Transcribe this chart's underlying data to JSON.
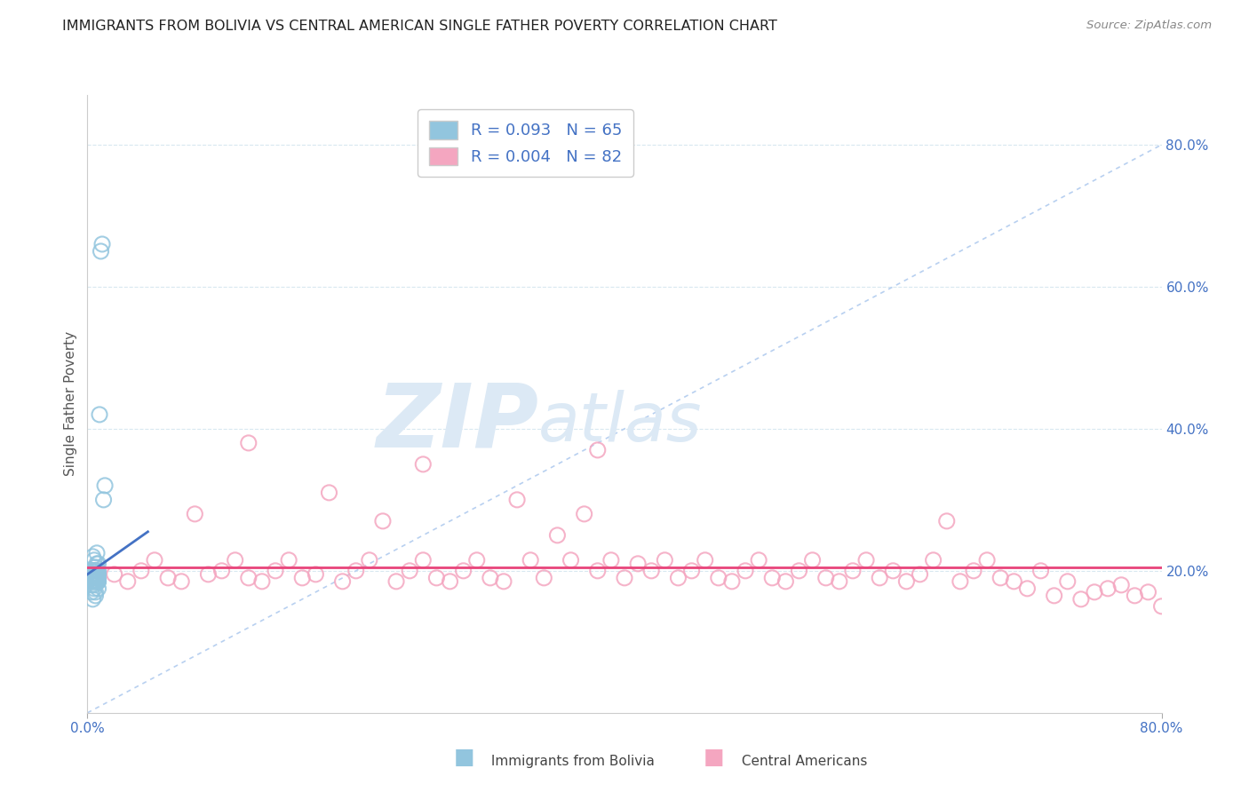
{
  "title": "IMMIGRANTS FROM BOLIVIA VS CENTRAL AMERICAN SINGLE FATHER POVERTY CORRELATION CHART",
  "source": "Source: ZipAtlas.com",
  "ylabel": "Single Father Poverty",
  "xlabel": "",
  "xlim": [
    0,
    0.8
  ],
  "ylim": [
    0.0,
    0.87
  ],
  "right_ytick_labels": [
    "20.0%",
    "40.0%",
    "60.0%",
    "80.0%"
  ],
  "right_ytick_values": [
    0.2,
    0.4,
    0.6,
    0.8
  ],
  "bolivia_R": 0.093,
  "bolivia_N": 65,
  "central_R": 0.004,
  "central_N": 82,
  "bolivia_color": "#92c5de",
  "central_color": "#f4a6c0",
  "bolivia_trend_color": "#4472c4",
  "central_trend_color": "#e8447a",
  "ref_line_color": "#b8d0f0",
  "grid_color": "#d8e8f0",
  "background_color": "#ffffff",
  "watermark_zip": "ZIP",
  "watermark_atlas": "atlas",
  "watermark_color": "#dce9f5",
  "legend_box_color": "#ffffff",
  "legend_border_color": "#cccccc",
  "bolivia_x": [
    0.005,
    0.003,
    0.008,
    0.004,
    0.006,
    0.002,
    0.007,
    0.005,
    0.003,
    0.006,
    0.008,
    0.004,
    0.005,
    0.007,
    0.003,
    0.006,
    0.004,
    0.008,
    0.005,
    0.003,
    0.007,
    0.004,
    0.006,
    0.005,
    0.003,
    0.008,
    0.006,
    0.004,
    0.007,
    0.005,
    0.003,
    0.006,
    0.008,
    0.004,
    0.005,
    0.007,
    0.003,
    0.006,
    0.004,
    0.008,
    0.005,
    0.003,
    0.007,
    0.006,
    0.004,
    0.008,
    0.005,
    0.006,
    0.003,
    0.007,
    0.004,
    0.008,
    0.005,
    0.006,
    0.003,
    0.007,
    0.004,
    0.008,
    0.005,
    0.006,
    0.009,
    0.01,
    0.011,
    0.012,
    0.013
  ],
  "bolivia_y": [
    0.195,
    0.19,
    0.185,
    0.2,
    0.195,
    0.19,
    0.2,
    0.185,
    0.195,
    0.185,
    0.19,
    0.2,
    0.185,
    0.195,
    0.2,
    0.19,
    0.185,
    0.195,
    0.2,
    0.19,
    0.185,
    0.195,
    0.2,
    0.19,
    0.185,
    0.195,
    0.2,
    0.19,
    0.185,
    0.195,
    0.2,
    0.19,
    0.185,
    0.195,
    0.2,
    0.19,
    0.185,
    0.195,
    0.19,
    0.185,
    0.195,
    0.2,
    0.19,
    0.185,
    0.195,
    0.2,
    0.175,
    0.165,
    0.18,
    0.21,
    0.22,
    0.175,
    0.215,
    0.205,
    0.17,
    0.225,
    0.16,
    0.21,
    0.18,
    0.17,
    0.42,
    0.65,
    0.66,
    0.3,
    0.32
  ],
  "central_x": [
    0.02,
    0.03,
    0.04,
    0.05,
    0.06,
    0.07,
    0.08,
    0.09,
    0.1,
    0.11,
    0.12,
    0.13,
    0.14,
    0.15,
    0.16,
    0.17,
    0.18,
    0.19,
    0.2,
    0.21,
    0.22,
    0.23,
    0.24,
    0.25,
    0.26,
    0.27,
    0.28,
    0.29,
    0.3,
    0.31,
    0.32,
    0.33,
    0.34,
    0.35,
    0.36,
    0.37,
    0.38,
    0.39,
    0.4,
    0.41,
    0.42,
    0.43,
    0.44,
    0.45,
    0.46,
    0.47,
    0.48,
    0.49,
    0.5,
    0.51,
    0.52,
    0.53,
    0.54,
    0.55,
    0.56,
    0.57,
    0.58,
    0.59,
    0.6,
    0.61,
    0.62,
    0.63,
    0.64,
    0.65,
    0.66,
    0.67,
    0.68,
    0.69,
    0.7,
    0.71,
    0.72,
    0.73,
    0.74,
    0.75,
    0.76,
    0.77,
    0.78,
    0.79,
    0.8,
    0.12,
    0.25,
    0.38
  ],
  "central_y": [
    0.195,
    0.185,
    0.2,
    0.215,
    0.19,
    0.185,
    0.28,
    0.195,
    0.2,
    0.215,
    0.19,
    0.185,
    0.2,
    0.215,
    0.19,
    0.195,
    0.31,
    0.185,
    0.2,
    0.215,
    0.27,
    0.185,
    0.2,
    0.215,
    0.19,
    0.185,
    0.2,
    0.215,
    0.19,
    0.185,
    0.3,
    0.215,
    0.19,
    0.25,
    0.215,
    0.28,
    0.2,
    0.215,
    0.19,
    0.21,
    0.2,
    0.215,
    0.19,
    0.2,
    0.215,
    0.19,
    0.185,
    0.2,
    0.215,
    0.19,
    0.185,
    0.2,
    0.215,
    0.19,
    0.185,
    0.2,
    0.215,
    0.19,
    0.2,
    0.185,
    0.195,
    0.215,
    0.27,
    0.185,
    0.2,
    0.215,
    0.19,
    0.185,
    0.175,
    0.2,
    0.165,
    0.185,
    0.16,
    0.17,
    0.175,
    0.18,
    0.165,
    0.17,
    0.15,
    0.38,
    0.35,
    0.37
  ]
}
